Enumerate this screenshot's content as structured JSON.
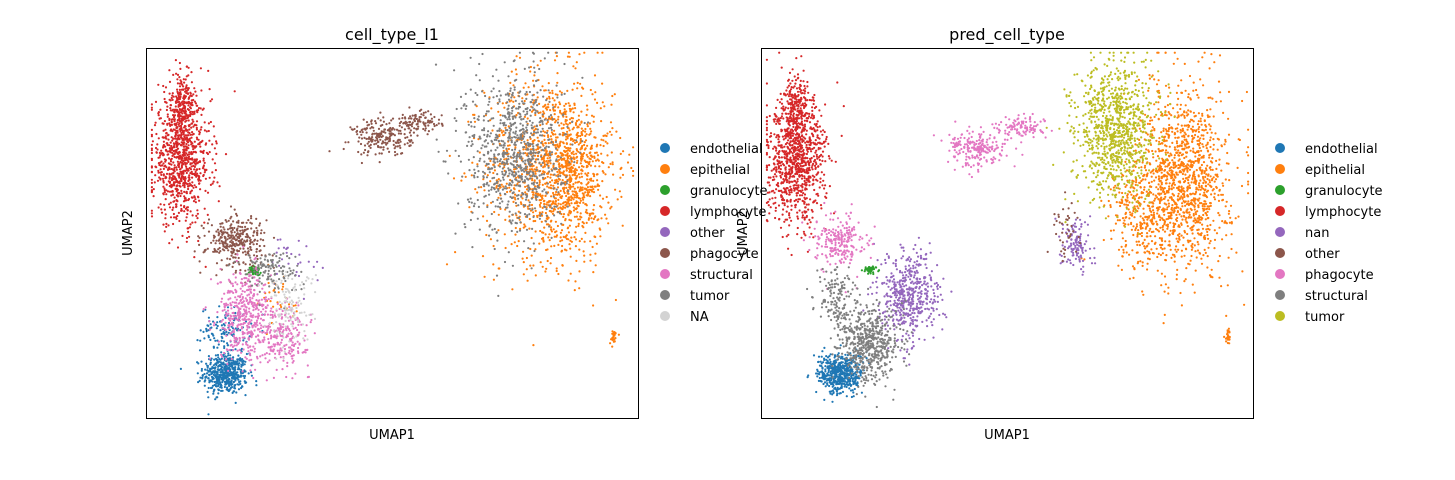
{
  "chart_data": [
    {
      "type": "scatter",
      "title": "cell_type_l1",
      "xlabel": "UMAP1",
      "ylabel": "UMAP2",
      "grid": false,
      "ticks": false,
      "legend_placement": "right",
      "series": [
        {
          "name": "endothelial",
          "color": "#1f77b4",
          "clusters": [
            {
              "x": 0.16,
              "y": 0.12,
              "rx": 0.045,
              "ry": 0.055,
              "n": 500
            },
            {
              "x": 0.16,
              "y": 0.24,
              "rx": 0.05,
              "ry": 0.06,
              "n": 120
            }
          ]
        },
        {
          "name": "epithelial",
          "color": "#ff7f0e",
          "clusters": [
            {
              "x": 0.82,
              "y": 0.68,
              "rx": 0.13,
              "ry": 0.25,
              "n": 1100
            },
            {
              "x": 0.87,
              "y": 0.66,
              "rx": 0.06,
              "ry": 0.2,
              "n": 350
            },
            {
              "x": 0.95,
              "y": 0.22,
              "rx": 0.008,
              "ry": 0.02,
              "n": 25
            },
            {
              "x": 0.26,
              "y": 0.32,
              "rx": 0.06,
              "ry": 0.08,
              "n": 30
            }
          ]
        },
        {
          "name": "granulocyte",
          "color": "#2ca02c",
          "clusters": [
            {
              "x": 0.22,
              "y": 0.4,
              "rx": 0.012,
              "ry": 0.012,
              "n": 45
            }
          ]
        },
        {
          "name": "lymphocyte",
          "color": "#d62728",
          "clusters": [
            {
              "x": 0.07,
              "y": 0.7,
              "rx": 0.06,
              "ry": 0.17,
              "n": 900
            },
            {
              "x": 0.07,
              "y": 0.85,
              "rx": 0.025,
              "ry": 0.08,
              "n": 180
            }
          ]
        },
        {
          "name": "other",
          "color": "#9467bd",
          "clusters": [
            {
              "x": 0.3,
              "y": 0.42,
              "rx": 0.05,
              "ry": 0.07,
              "n": 30
            }
          ]
        },
        {
          "name": "phagocyte",
          "color": "#8c564b",
          "clusters": [
            {
              "x": 0.18,
              "y": 0.48,
              "rx": 0.06,
              "ry": 0.07,
              "n": 320
            },
            {
              "x": 0.48,
              "y": 0.76,
              "rx": 0.06,
              "ry": 0.05,
              "n": 200
            },
            {
              "x": 0.55,
              "y": 0.8,
              "rx": 0.05,
              "ry": 0.03,
              "n": 100
            }
          ]
        },
        {
          "name": "structural",
          "color": "#e377c2",
          "clusters": [
            {
              "x": 0.2,
              "y": 0.28,
              "rx": 0.055,
              "ry": 0.12,
              "n": 450
            },
            {
              "x": 0.28,
              "y": 0.22,
              "rx": 0.05,
              "ry": 0.08,
              "n": 200
            }
          ]
        },
        {
          "name": "tumor",
          "color": "#7f7f7f",
          "clusters": [
            {
              "x": 0.75,
              "y": 0.72,
              "rx": 0.1,
              "ry": 0.22,
              "n": 850
            },
            {
              "x": 0.25,
              "y": 0.4,
              "rx": 0.06,
              "ry": 0.06,
              "n": 120
            }
          ]
        },
        {
          "name": "NA",
          "color": "#d3d3d3",
          "clusters": [
            {
              "x": 0.29,
              "y": 0.3,
              "rx": 0.05,
              "ry": 0.1,
              "n": 120
            }
          ]
        }
      ]
    },
    {
      "type": "scatter",
      "title": "pred_cell_type",
      "xlabel": "UMAP1",
      "ylabel": "UMAP2",
      "grid": false,
      "ticks": false,
      "legend_placement": "right",
      "series": [
        {
          "name": "endothelial",
          "color": "#1f77b4",
          "clusters": [
            {
              "x": 0.16,
              "y": 0.12,
              "rx": 0.045,
              "ry": 0.055,
              "n": 500
            }
          ]
        },
        {
          "name": "epithelial",
          "color": "#ff7f0e",
          "clusters": [
            {
              "x": 0.86,
              "y": 0.65,
              "rx": 0.09,
              "ry": 0.24,
              "n": 1200
            },
            {
              "x": 0.78,
              "y": 0.55,
              "rx": 0.08,
              "ry": 0.15,
              "n": 300
            },
            {
              "x": 0.95,
              "y": 0.22,
              "rx": 0.008,
              "ry": 0.02,
              "n": 25
            }
          ]
        },
        {
          "name": "granulocyte",
          "color": "#2ca02c",
          "clusters": [
            {
              "x": 0.22,
              "y": 0.4,
              "rx": 0.012,
              "ry": 0.012,
              "n": 45
            }
          ]
        },
        {
          "name": "lymphocyte",
          "color": "#d62728",
          "clusters": [
            {
              "x": 0.07,
              "y": 0.7,
              "rx": 0.06,
              "ry": 0.17,
              "n": 950
            },
            {
              "x": 0.07,
              "y": 0.85,
              "rx": 0.025,
              "ry": 0.08,
              "n": 180
            }
          ]
        },
        {
          "name": "nan",
          "color": "#9467bd",
          "clusters": [
            {
              "x": 0.3,
              "y": 0.33,
              "rx": 0.06,
              "ry": 0.12,
              "n": 500
            },
            {
              "x": 0.64,
              "y": 0.47,
              "rx": 0.03,
              "ry": 0.07,
              "n": 120
            }
          ]
        },
        {
          "name": "other",
          "color": "#8c564b",
          "clusters": [
            {
              "x": 0.62,
              "y": 0.52,
              "rx": 0.03,
              "ry": 0.08,
              "n": 40
            }
          ]
        },
        {
          "name": "phagocyte",
          "color": "#e377c2",
          "clusters": [
            {
              "x": 0.44,
              "y": 0.73,
              "rx": 0.06,
              "ry": 0.05,
              "n": 220
            },
            {
              "x": 0.53,
              "y": 0.79,
              "rx": 0.05,
              "ry": 0.03,
              "n": 100
            },
            {
              "x": 0.16,
              "y": 0.48,
              "rx": 0.05,
              "ry": 0.07,
              "n": 220
            }
          ]
        },
        {
          "name": "structural",
          "color": "#7f7f7f",
          "clusters": [
            {
              "x": 0.22,
              "y": 0.2,
              "rx": 0.06,
              "ry": 0.1,
              "n": 550
            },
            {
              "x": 0.15,
              "y": 0.32,
              "rx": 0.04,
              "ry": 0.08,
              "n": 150
            }
          ]
        },
        {
          "name": "tumor",
          "color": "#bcbd22",
          "clusters": [
            {
              "x": 0.72,
              "y": 0.78,
              "rx": 0.08,
              "ry": 0.18,
              "n": 950
            }
          ]
        }
      ]
    }
  ]
}
